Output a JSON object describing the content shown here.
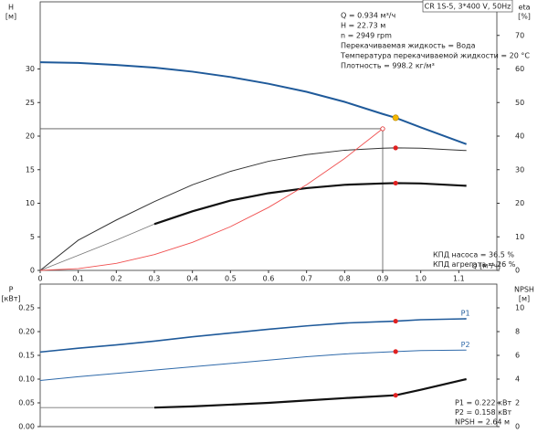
{
  "chart_data": [
    {
      "type": "line",
      "title": "CR 1S-5, 3*400 V, 50Hz",
      "x_label": "Q [м³/ч]",
      "y_label": "H",
      "y_unit": "[м]",
      "y2_label": "eta",
      "y2_unit": "[%]",
      "info": [
        "Q = 0.934 м³/ч",
        "H = 22.73 м",
        "n = 2949 rpm",
        "Перекачиваемая жидкость = Вода",
        "Температура перекачиваемой жидкости = 20 °C",
        "Плотность = 998.2 кг/м³"
      ],
      "notes": [
        "КПД насоса = 36.5 %",
        "КПД агрегата = 26 %"
      ],
      "x": [
        0,
        0.1,
        0.2,
        0.3,
        0.4,
        0.5,
        0.6,
        0.7,
        0.8,
        0.9,
        0.934,
        1.0,
        1.12
      ],
      "xlim": [
        0,
        1.2
      ],
      "xticks": [
        0,
        0.1,
        0.2,
        0.3,
        0.4,
        0.5,
        0.6,
        0.7,
        0.8,
        0.9,
        {
          "value": 1,
          "label": "1.0"
        },
        1.1
      ],
      "ylim": [
        0,
        40
      ],
      "yticks": [
        0,
        5,
        10,
        15,
        20,
        25,
        30
      ],
      "y2lim": [
        0,
        80
      ],
      "y2ticks": [
        0,
        10,
        20,
        30,
        40,
        50,
        60,
        70
      ],
      "series": [
        {
          "color": "#1f5a9a",
          "width": 2,
          "values": [
            31.0,
            30.9,
            30.6,
            30.2,
            29.6,
            28.8,
            27.8,
            26.6,
            25.1,
            23.3,
            22.73,
            21.3,
            18.8
          ]
        },
        {
          "color": "#333333",
          "width": 1,
          "axis": "y2",
          "values": [
            0,
            9,
            15,
            20.5,
            25.5,
            29.5,
            32.5,
            34.5,
            35.8,
            36.4,
            36.5,
            36.4,
            35.7
          ]
        },
        {
          "color": "#777777",
          "width": 0.8,
          "axis": "y2",
          "values": [
            0,
            4.5,
            9,
            13.8,
            null,
            null,
            null,
            null,
            null,
            null,
            null,
            null,
            null
          ]
        },
        {
          "color": "#111111",
          "width": 2.2,
          "axis": "y2",
          "values": [
            null,
            null,
            null,
            13.8,
            17.6,
            20.8,
            23.0,
            24.5,
            25.5,
            25.9,
            26,
            25.9,
            25.2
          ]
        },
        {
          "color": "#f05050",
          "width": 0.9,
          "values": [
            0,
            0.26,
            1.04,
            2.35,
            4.17,
            6.51,
            9.38,
            12.76,
            16.67,
            21.1,
            null,
            null,
            null
          ]
        }
      ],
      "markers": [
        {
          "x": 0.934,
          "y": 22.73,
          "color": "#f5b800"
        },
        {
          "x": 0.934,
          "y": 36.5,
          "axis": "y2",
          "color": "#e02020"
        },
        {
          "x": 0.934,
          "y": 26,
          "axis": "y2",
          "color": "#e02020"
        }
      ],
      "guide": {
        "x": 0.9,
        "y": 21.1,
        "color": "#e02020"
      }
    },
    {
      "type": "line",
      "y_label": "P",
      "y_unit": "[кВт]",
      "y2_label": "NPSH",
      "y2_unit": "[м]",
      "notes": [
        "P1 = 0.222 кВт",
        "P2 = 0.158 кВт",
        "NPSH = 2.64 м"
      ],
      "x": [
        0,
        0.1,
        0.2,
        0.3,
        0.4,
        0.5,
        0.6,
        0.7,
        0.8,
        0.934,
        1.0,
        1.12
      ],
      "xlim": [
        0,
        1.2
      ],
      "ylim": [
        0,
        0.3
      ],
      "yticks": [
        {
          "value": 0,
          "label": "0.00"
        },
        {
          "value": 0.05,
          "label": "0.05"
        },
        {
          "value": 0.1,
          "label": "0.10"
        },
        {
          "value": 0.15,
          "label": "0.15"
        },
        {
          "value": 0.2,
          "label": "0.20"
        },
        {
          "value": 0.25,
          "label": "0.25"
        }
      ],
      "y2lim": [
        0,
        12
      ],
      "y2ticks": [
        0,
        2,
        4,
        6,
        8,
        10
      ],
      "series": [
        {
          "name": "P1",
          "color": "#1f5a9a",
          "width": 1.6,
          "values": [
            0.157,
            0.165,
            0.172,
            0.18,
            0.189,
            0.197,
            0.205,
            0.212,
            0.218,
            0.222,
            0.225,
            0.227
          ]
        },
        {
          "name": "P2",
          "color": "#2f6aaa",
          "width": 1,
          "values": [
            0.097,
            0.105,
            0.112,
            0.119,
            0.126,
            0.133,
            0.14,
            0.147,
            0.153,
            0.158,
            0.16,
            0.161
          ]
        },
        {
          "color": "#777777",
          "width": 0.8,
          "axis": "y2",
          "values": [
            1.6,
            1.6,
            1.6,
            1.6,
            null,
            null,
            null,
            null,
            null,
            null,
            null,
            null
          ]
        },
        {
          "color": "#111111",
          "width": 2.2,
          "axis": "y2",
          "values": [
            null,
            null,
            null,
            1.6,
            1.7,
            1.85,
            2.0,
            2.2,
            2.4,
            2.64,
            3.1,
            4.0
          ]
        }
      ],
      "markers": [
        {
          "x": 0.934,
          "y": 0.222,
          "color": "#e02020"
        },
        {
          "x": 0.934,
          "y": 0.158,
          "color": "#e02020"
        },
        {
          "x": 0.934,
          "y": 2.64,
          "axis": "y2",
          "color": "#e02020"
        }
      ]
    }
  ]
}
